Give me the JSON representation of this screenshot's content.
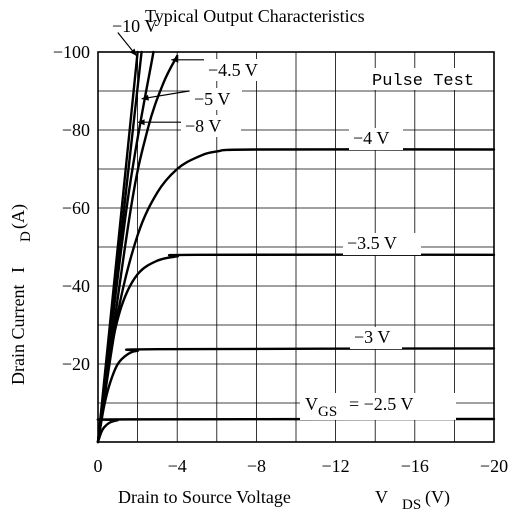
{
  "chart_data": {
    "type": "line",
    "title": "Typical Output Characteristics",
    "annotation": "Pulse Test",
    "xlabel": "Drain to Source Voltage",
    "xlabel_symbol": "V",
    "xlabel_subscript": "DS",
    "xlabel_unit": "(V)",
    "ylabel": "Drain Current",
    "ylabel_symbol": "I",
    "ylabel_subscript": "D",
    "ylabel_unit": "(A)",
    "xlim": [
      0,
      -20
    ],
    "ylim": [
      0,
      -100
    ],
    "x_ticks": [
      0,
      -4,
      -8,
      -12,
      -16,
      -20
    ],
    "x_tick_labels": [
      "0",
      "−4",
      "−8",
      "−12",
      "−16",
      "−20"
    ],
    "y_ticks": [
      -20,
      -40,
      -60,
      -80,
      -100
    ],
    "y_tick_labels": [
      "−20",
      "−40",
      "−60",
      "−80",
      "−100"
    ],
    "grid": true,
    "legend_prefix": "V",
    "legend_prefix_subscript": "GS",
    "series": [
      {
        "name": "−10 V",
        "x": [
          0,
          -2.0
        ],
        "y": [
          0,
          -100
        ]
      },
      {
        "name": "−8 V",
        "x": [
          0,
          -2.2
        ],
        "y": [
          0,
          -100
        ]
      },
      {
        "name": "−5 V",
        "x": [
          0,
          -1.5,
          -2.8
        ],
        "y": [
          0,
          -62,
          -100
        ]
      },
      {
        "name": "−4.5 V",
        "x": [
          0,
          -1.6,
          -2.5,
          -3.3,
          -4.0
        ],
        "y": [
          0,
          -58,
          -80,
          -92,
          -99
        ]
      },
      {
        "name": "−4 V",
        "x": [
          0,
          -1.0,
          -2.0,
          -3.0,
          -4.0,
          -5.0,
          -6.0,
          -8.0,
          -20.0
        ],
        "y": [
          0,
          -33,
          -53,
          -64,
          -70,
          -73,
          -74.5,
          -75,
          -75
        ]
      },
      {
        "name": "−3.5 V",
        "x": [
          0,
          -0.6,
          -1.2,
          -2.0,
          -3.0,
          -4.0,
          -5.0,
          -20.0
        ],
        "y": [
          0,
          -22,
          -35,
          -43,
          -46.5,
          -47.6,
          -48,
          -48
        ]
      },
      {
        "name": "−3 V",
        "x": [
          0,
          -0.3,
          -0.6,
          -1.0,
          -1.5,
          -2.0,
          -3.0,
          -20.0
        ],
        "y": [
          0,
          -9,
          -15,
          -20,
          -22.5,
          -23.4,
          -23.8,
          -24
        ]
      },
      {
        "name": "−2.5 V",
        "x": [
          0,
          -0.15,
          -0.3,
          -0.6,
          -1.0,
          -1.5,
          -20.0
        ],
        "y": [
          0,
          -2.3,
          -3.7,
          -5.0,
          -5.6,
          -5.8,
          -5.9
        ]
      }
    ],
    "labels": {
      "m10": "−10 V",
      "m45": "−4.5 V",
      "m5": "−5 V",
      "m8": "−8 V",
      "m4": "−4 V",
      "m35": "−3.5 V",
      "m3": "−3 V",
      "vgs_value": "= −2.5 V"
    }
  }
}
